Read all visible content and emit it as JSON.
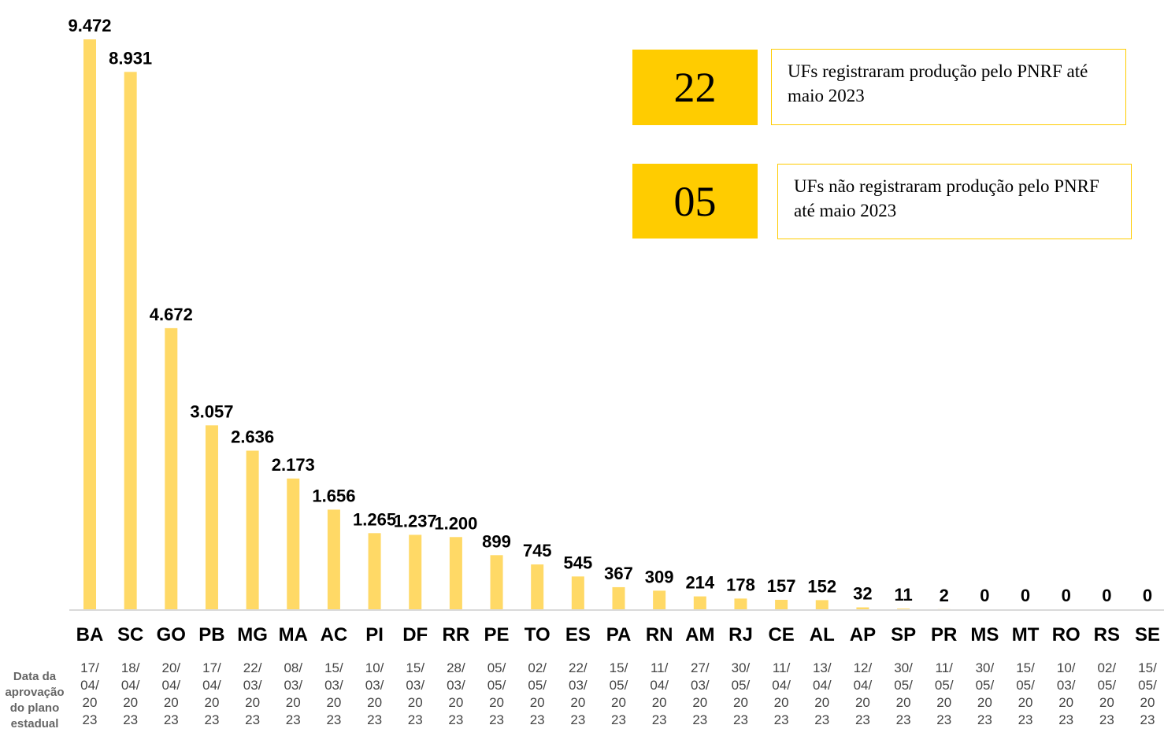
{
  "chart_data": {
    "type": "bar",
    "categories": [
      "BA",
      "SC",
      "GO",
      "PB",
      "MG",
      "MA",
      "AC",
      "PI",
      "DF",
      "RR",
      "PE",
      "TO",
      "ES",
      "PA",
      "RN",
      "AM",
      "RJ",
      "CE",
      "AL",
      "AP",
      "SP",
      "PR",
      "MS",
      "MT",
      "RO",
      "RS",
      "SE"
    ],
    "values": [
      9472,
      8931,
      4672,
      3057,
      2636,
      2173,
      1656,
      1265,
      1237,
      1200,
      899,
      745,
      545,
      367,
      309,
      214,
      178,
      157,
      152,
      32,
      11,
      2,
      0,
      0,
      0,
      0,
      0
    ],
    "value_labels": [
      "9.472",
      "8.931",
      "4.672",
      "3.057",
      "2.636",
      "2.173",
      "1.656",
      "1.265",
      "1.237",
      "1.200",
      "899",
      "745",
      "545",
      "367",
      "309",
      "214",
      "178",
      "157",
      "152",
      "32",
      "11",
      "2",
      "0",
      "0",
      "0",
      "0",
      "0"
    ],
    "color": "#ffd966",
    "row_label": "Data da aprovação do plano estadual",
    "dates": [
      "17/04/2023",
      "18/04/2023",
      "20/04/2023",
      "17/04/2023",
      "22/03/2023",
      "08/03/2023",
      "15/03/2023",
      "10/03/2023",
      "15/03/2023",
      "28/03/2023",
      "05/05/2023",
      "02/05/2023",
      "22/03/2023",
      "15/05/2023",
      "11/04/2023",
      "27/03/2023",
      "30/05/2023",
      "11/04/2023",
      "13/04/2023",
      "12/04/2023",
      "30/05/2023",
      "11/05/2023",
      "30/05/2023",
      "15/05/2023",
      "10/03/2023",
      "02/05/2023",
      "15/05/2023"
    ],
    "annotations": [
      {
        "number": "22",
        "text": "UFs registraram produção pelo PNRF até maio 2023"
      },
      {
        "number": "05",
        "text": "UFs não registraram produção pelo PNRF até maio 2023"
      }
    ]
  }
}
